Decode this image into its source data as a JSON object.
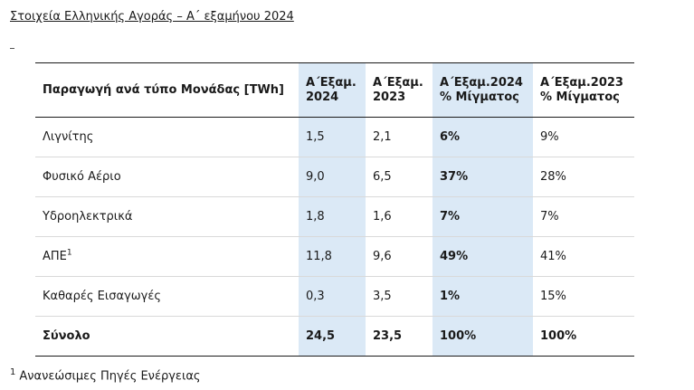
{
  "document": {
    "title": "Στοιχεία Ελληνικής Αγοράς – Α΄ εξαμήνου 2024"
  },
  "table": {
    "headers": {
      "label": "Παραγωγή ανά τύπο Μονάδας [TWh]",
      "a2024_line1": "Α΄Εξαμ.",
      "a2024_line2": "2024",
      "a2023_line1": "Α΄Εξαμ.",
      "a2023_line2": "2023",
      "mix2024_line1": "Α΄Εξαμ.2024",
      "mix2024_line2": "% Μίγματος",
      "mix2023_line1": "Α΄Εξαμ.2023",
      "mix2023_line2": "% Μίγματος"
    },
    "rows": [
      {
        "label": "Λιγνίτης",
        "sup": "",
        "a2024": "1,5",
        "a2023": "2,1",
        "mix2024": "6%",
        "mix2023": "9%"
      },
      {
        "label": "Φυσικό Αέριο",
        "sup": "",
        "a2024": "9,0",
        "a2023": "6,5",
        "mix2024": "37%",
        "mix2023": "28%"
      },
      {
        "label": "Υδροηλεκτρικά",
        "sup": "",
        "a2024": "1,8",
        "a2023": "1,6",
        "mix2024": "7%",
        "mix2023": "7%"
      },
      {
        "label": "ΑΠΕ",
        "sup": "1",
        "a2024": "11,8",
        "a2023": "9,6",
        "mix2024": "49%",
        "mix2023": "41%"
      },
      {
        "label": "Καθαρές Εισαγωγές",
        "sup": "",
        "a2024": "0,3",
        "a2023": "3,5",
        "mix2024": "1%",
        "mix2023": "15%"
      }
    ],
    "total": {
      "label": "Σύνολο",
      "a2024": "24,5",
      "a2023": "23,5",
      "mix2024": "100%",
      "mix2023": "100%"
    }
  },
  "footnote": {
    "number": "1",
    "text": "Ανανεώσιμες Πηγές Ενέργειας"
  }
}
